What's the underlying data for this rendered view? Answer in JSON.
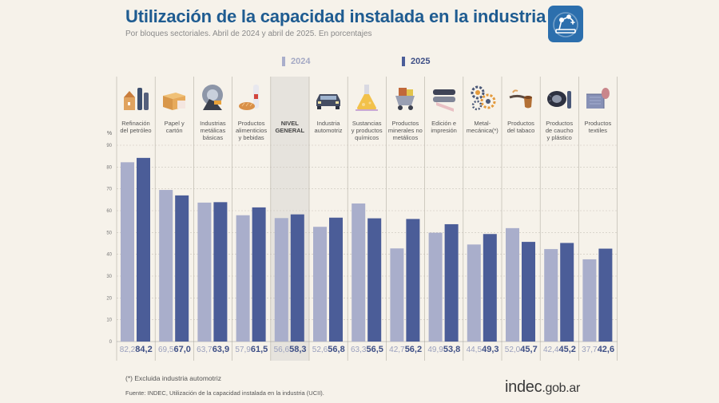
{
  "header": {
    "title": "Utilización de la capacidad instalada en la industria",
    "subtitle": "Por bloques sectoriales. Abril de 2024 y abril de 2025. En porcentajes",
    "logo_icon": "industry-robot-arm-icon"
  },
  "legend": [
    {
      "name": "2024",
      "color": "#a9aecb"
    },
    {
      "name": "2025",
      "color": "#4b5d98"
    }
  ],
  "chart_data": {
    "type": "bar",
    "title": "Utilización de la capacidad instalada en la industria",
    "ylabel": "%",
    "ylim": [
      0,
      90
    ],
    "yticks": [
      0,
      10,
      20,
      30,
      40,
      50,
      60,
      70,
      80,
      90
    ],
    "grid": true,
    "highlighted_category": "NIVEL GENERAL",
    "categories": [
      {
        "label": "Refinación del petróleo",
        "lines": [
          "Refinación",
          "del petróleo"
        ],
        "icon": "oil-refinery-icon"
      },
      {
        "label": "Papel y cartón",
        "lines": [
          "Papel y",
          "cartón"
        ],
        "icon": "paper-cardboard-box-icon"
      },
      {
        "label": "Industrias metálicas básicas",
        "lines": [
          "Industrias",
          "metálicas",
          "básicas"
        ],
        "icon": "metal-industry-icon"
      },
      {
        "label": "Productos alimenticios y bebidas",
        "lines": [
          "Productos",
          "alimenticios",
          "y bebidas"
        ],
        "icon": "food-beverage-icon"
      },
      {
        "label": "NIVEL GENERAL",
        "lines": [
          "NIVEL",
          "GENERAL"
        ],
        "icon": ""
      },
      {
        "label": "Industria automotriz",
        "lines": [
          "Industria",
          "automotriz"
        ],
        "icon": "car-icon"
      },
      {
        "label": "Sustancias y productos químicos",
        "lines": [
          "Sustancias",
          "y productos",
          "químicos"
        ],
        "icon": "chemical-flask-icon"
      },
      {
        "label": "Productos minerales no metálicos",
        "lines": [
          "Productos",
          "minerales no",
          "metálicos"
        ],
        "icon": "mineral-cart-icon"
      },
      {
        "label": "Edición e impresión",
        "lines": [
          "Edición e",
          "impresión"
        ],
        "icon": "printing-rolls-icon"
      },
      {
        "label": "Metal-mecánica(*)",
        "lines": [
          "Metal-",
          "mecánica(*)"
        ],
        "icon": "gears-icon"
      },
      {
        "label": "Productos del tabaco",
        "lines": [
          "Productos",
          "del tabaco"
        ],
        "icon": "tobacco-pipe-icon"
      },
      {
        "label": "Productos de caucho y plástico",
        "lines": [
          "Productos",
          "de caucho",
          "y plástico"
        ],
        "icon": "tire-icon"
      },
      {
        "label": "Productos textiles",
        "lines": [
          "Productos",
          "textiles"
        ],
        "icon": "textile-fabric-icon"
      }
    ],
    "series": [
      {
        "name": "2024",
        "values": [
          82.2,
          69.5,
          63.7,
          57.9,
          56.6,
          52.6,
          63.3,
          42.7,
          49.9,
          44.5,
          52.0,
          42.4,
          37.7
        ]
      },
      {
        "name": "2025",
        "values": [
          84.2,
          67.0,
          63.9,
          61.5,
          58.3,
          56.8,
          56.5,
          56.2,
          53.8,
          49.3,
          45.7,
          45.2,
          42.6
        ]
      }
    ],
    "value_labels": {
      "2024": [
        "82,2",
        "69,5",
        "63,7",
        "57,9",
        "56,6",
        "52,6",
        "63,3",
        "42,7",
        "49,9",
        "44,5",
        "52,0",
        "42,4",
        "37,7"
      ],
      "2025": [
        "84,2",
        "67,0",
        "63,9",
        "61,5",
        "58,3",
        "56,8",
        "56,5",
        "56,2",
        "53,8",
        "49,3",
        "45,7",
        "45,2",
        "42,6"
      ]
    }
  },
  "footer": {
    "footnote": "(*) Excluida industria automotriz",
    "source": "Fuente: INDEC, Utilización de la capacidad instalada en la industria (UCII).",
    "brand_main": "indec",
    "brand_domain": ".gob.ar"
  }
}
